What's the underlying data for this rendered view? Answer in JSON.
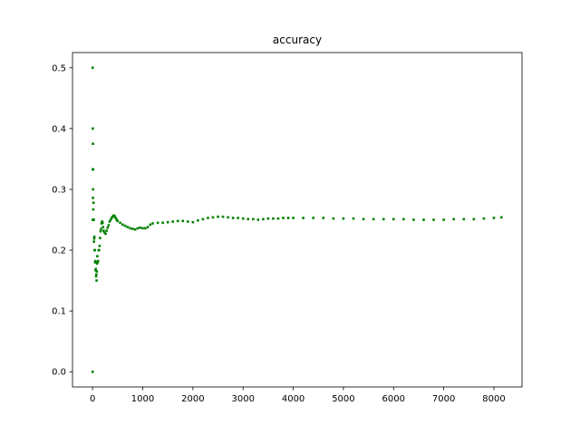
{
  "chart_data": {
    "type": "scatter",
    "title": "accuracy",
    "xlabel": "",
    "ylabel": "",
    "xlim": [
      -400,
      8560
    ],
    "ylim": [
      -0.025,
      0.525
    ],
    "grid": false,
    "marker_color": "#008000",
    "x_ticks": [
      {
        "value": 0,
        "label": "0"
      },
      {
        "value": 1000,
        "label": "1000"
      },
      {
        "value": 2000,
        "label": "2000"
      },
      {
        "value": 3000,
        "label": "3000"
      },
      {
        "value": 4000,
        "label": "4000"
      },
      {
        "value": 5000,
        "label": "5000"
      },
      {
        "value": 6000,
        "label": "6000"
      },
      {
        "value": 7000,
        "label": "7000"
      },
      {
        "value": 8000,
        "label": "8000"
      }
    ],
    "y_ticks": [
      {
        "value": 0.0,
        "label": "0.0"
      },
      {
        "value": 0.1,
        "label": "0.1"
      },
      {
        "value": 0.2,
        "label": "0.2"
      },
      {
        "value": 0.3,
        "label": "0.3"
      },
      {
        "value": 0.4,
        "label": "0.4"
      },
      {
        "value": 0.5,
        "label": "0.5"
      }
    ],
    "series": [
      {
        "points": [
          [
            1,
            0.0
          ],
          [
            2,
            0.5
          ],
          [
            3,
            0.333
          ],
          [
            4,
            0.25
          ],
          [
            5,
            0.4
          ],
          [
            6,
            0.333
          ],
          [
            7,
            0.286
          ],
          [
            8,
            0.375
          ],
          [
            9,
            0.333
          ],
          [
            10,
            0.3
          ],
          [
            12,
            0.333
          ],
          [
            15,
            0.267
          ],
          [
            18,
            0.278
          ],
          [
            20,
            0.25
          ],
          [
            24,
            0.25
          ],
          [
            28,
            0.214
          ],
          [
            32,
            0.219
          ],
          [
            36,
            0.222
          ],
          [
            40,
            0.2
          ],
          [
            45,
            0.2
          ],
          [
            50,
            0.18
          ],
          [
            55,
            0.182
          ],
          [
            60,
            0.167
          ],
          [
            65,
            0.169
          ],
          [
            70,
            0.157
          ],
          [
            75,
            0.16
          ],
          [
            80,
            0.15
          ],
          [
            85,
            0.165
          ],
          [
            90,
            0.178
          ],
          [
            95,
            0.19
          ],
          [
            100,
            0.18
          ],
          [
            110,
            0.182
          ],
          [
            120,
            0.2
          ],
          [
            130,
            0.2
          ],
          [
            140,
            0.207
          ],
          [
            150,
            0.22
          ],
          [
            160,
            0.231
          ],
          [
            170,
            0.235
          ],
          [
            180,
            0.244
          ],
          [
            190,
            0.247
          ],
          [
            200,
            0.245
          ],
          [
            210,
            0.238
          ],
          [
            220,
            0.232
          ],
          [
            240,
            0.229
          ],
          [
            260,
            0.227
          ],
          [
            280,
            0.232
          ],
          [
            300,
            0.237
          ],
          [
            320,
            0.241
          ],
          [
            340,
            0.247
          ],
          [
            360,
            0.25
          ],
          [
            380,
            0.253
          ],
          [
            400,
            0.255
          ],
          [
            420,
            0.257
          ],
          [
            440,
            0.256
          ],
          [
            460,
            0.253
          ],
          [
            480,
            0.25
          ],
          [
            500,
            0.248
          ],
          [
            550,
            0.245
          ],
          [
            600,
            0.242
          ],
          [
            650,
            0.24
          ],
          [
            700,
            0.238
          ],
          [
            750,
            0.236
          ],
          [
            800,
            0.235
          ],
          [
            850,
            0.234
          ],
          [
            900,
            0.236
          ],
          [
            950,
            0.237
          ],
          [
            1000,
            0.236
          ],
          [
            1050,
            0.236
          ],
          [
            1100,
            0.238
          ],
          [
            1150,
            0.242
          ],
          [
            1200,
            0.244
          ],
          [
            1300,
            0.245
          ],
          [
            1400,
            0.245
          ],
          [
            1500,
            0.246
          ],
          [
            1600,
            0.247
          ],
          [
            1700,
            0.248
          ],
          [
            1800,
            0.248
          ],
          [
            1900,
            0.247
          ],
          [
            2000,
            0.246
          ],
          [
            2100,
            0.249
          ],
          [
            2200,
            0.251
          ],
          [
            2300,
            0.253
          ],
          [
            2400,
            0.254
          ],
          [
            2500,
            0.255
          ],
          [
            2600,
            0.255
          ],
          [
            2700,
            0.254
          ],
          [
            2800,
            0.253
          ],
          [
            2900,
            0.253
          ],
          [
            3000,
            0.252
          ],
          [
            3100,
            0.251
          ],
          [
            3200,
            0.251
          ],
          [
            3300,
            0.25
          ],
          [
            3400,
            0.251
          ],
          [
            3500,
            0.252
          ],
          [
            3600,
            0.252
          ],
          [
            3700,
            0.252
          ],
          [
            3800,
            0.253
          ],
          [
            3900,
            0.253
          ],
          [
            4000,
            0.253
          ],
          [
            4200,
            0.253
          ],
          [
            4400,
            0.253
          ],
          [
            4600,
            0.253
          ],
          [
            4800,
            0.252
          ],
          [
            5000,
            0.252
          ],
          [
            5200,
            0.252
          ],
          [
            5400,
            0.251
          ],
          [
            5600,
            0.251
          ],
          [
            5800,
            0.251
          ],
          [
            6000,
            0.251
          ],
          [
            6200,
            0.251
          ],
          [
            6400,
            0.25
          ],
          [
            6600,
            0.25
          ],
          [
            6800,
            0.25
          ],
          [
            7000,
            0.25
          ],
          [
            7200,
            0.251
          ],
          [
            7400,
            0.251
          ],
          [
            7600,
            0.251
          ],
          [
            7800,
            0.252
          ],
          [
            8000,
            0.253
          ],
          [
            8150,
            0.254
          ]
        ]
      }
    ]
  }
}
